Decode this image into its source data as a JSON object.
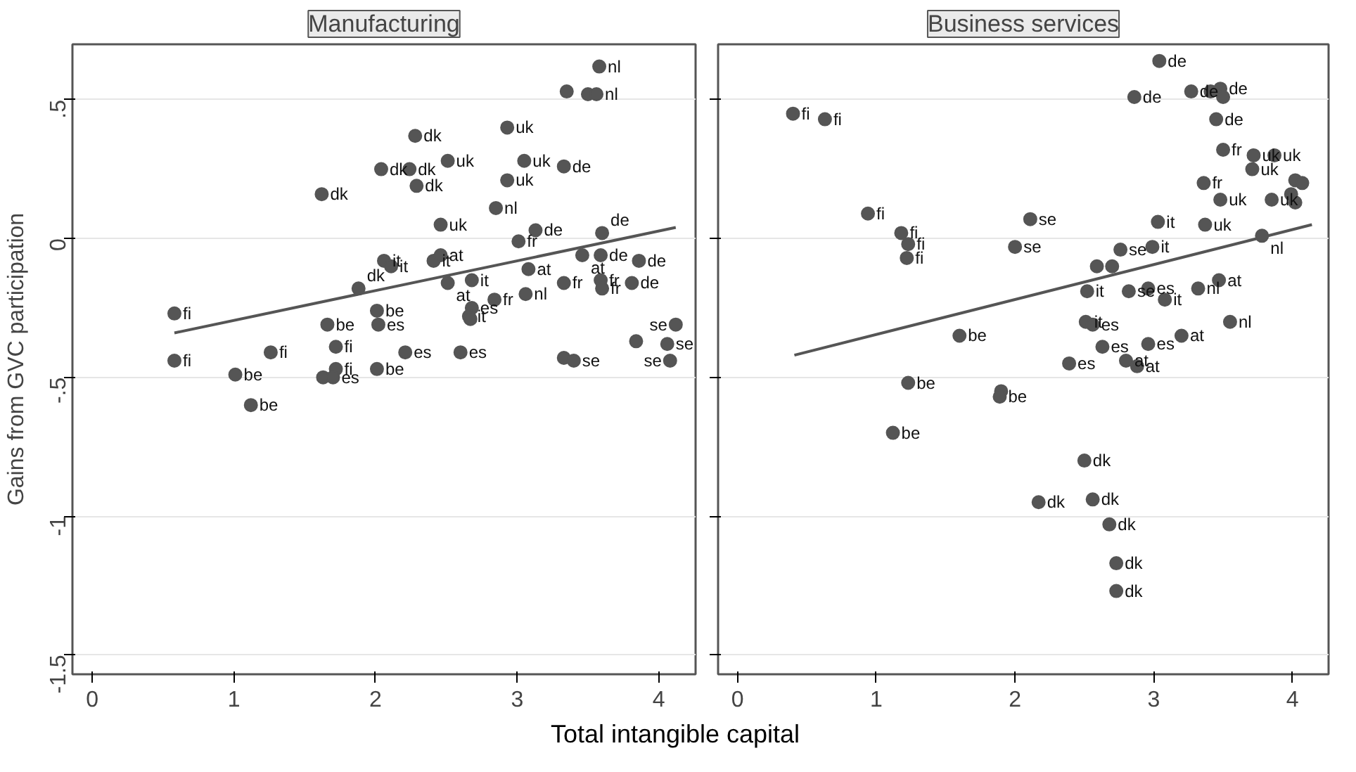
{
  "chart_data": [
    {
      "type": "scatter",
      "title": "Manufacturing",
      "ylabel": "Gains from GVC participation",
      "xlabel": "Total intangible capital",
      "xlim": [
        -0.14,
        4.26
      ],
      "ylim": [
        -1.57,
        0.7
      ],
      "xticks": [
        0,
        1,
        2,
        3,
        4
      ],
      "yticks": [
        {
          "value": 0.5,
          "label": ".5"
        },
        0,
        {
          "value": -0.5,
          "label": "-.5"
        },
        {
          "value": -1,
          "label": "-1"
        },
        {
          "value": -1.5,
          "label": "-1.5"
        }
      ],
      "grid": "y",
      "series": [
        {
          "marker": "circle",
          "color": "#555555",
          "x": [
            3.58,
            3.35,
            3.5,
            3.56,
            2.28,
            2.93,
            2.04,
            2.24,
            2.51,
            2.29,
            3.05,
            3.33,
            2.93,
            1.62,
            2.85,
            2.46,
            3.13,
            3.01,
            3.6,
            3.46,
            3.59,
            3.86,
            2.06,
            2.11,
            2.41,
            2.46,
            1.88,
            2.51,
            2.68,
            3.08,
            3.33,
            3.59,
            3.6,
            3.81,
            3.06,
            2.84,
            0.58,
            2.68,
            2.66,
            2.67,
            2.01,
            1.66,
            2.02,
            4.12,
            3.84,
            4.06,
            4.08,
            3.33,
            3.4,
            1.72,
            2.21,
            2.6,
            0.58,
            1.26,
            1.01,
            1.72,
            1.63,
            1.7,
            2.01,
            1.12
          ],
          "values": [
            0.62,
            0.53,
            0.52,
            0.52,
            0.37,
            0.4,
            0.25,
            0.25,
            0.28,
            0.19,
            0.28,
            0.26,
            0.21,
            0.16,
            0.11,
            0.05,
            0.03,
            -0.01,
            0.02,
            -0.06,
            -0.06,
            -0.08,
            -0.08,
            -0.1,
            -0.08,
            -0.06,
            -0.18,
            -0.16,
            -0.15,
            -0.11,
            -0.16,
            -0.15,
            -0.18,
            -0.16,
            -0.2,
            -0.22,
            -0.27,
            -0.25,
            -0.28,
            -0.29,
            -0.26,
            -0.31,
            -0.31,
            -0.31,
            -0.37,
            -0.38,
            -0.44,
            -0.43,
            -0.44,
            -0.39,
            -0.41,
            -0.41,
            -0.44,
            -0.41,
            -0.49,
            -0.47,
            -0.5,
            -0.5,
            -0.47,
            -0.6
          ],
          "value_labels": [
            "nl",
            null,
            null,
            "nl",
            "dk",
            "uk",
            "dk",
            "dk",
            "uk",
            "dk",
            "uk",
            "de",
            "uk",
            "dk",
            "nl",
            "uk",
            "de",
            "fr",
            "de",
            "at",
            "de",
            "de",
            "it",
            "it",
            "it",
            "at",
            "dk",
            "at",
            "it",
            "at",
            "fr",
            "fr",
            "fr",
            "de",
            "nl",
            "fr",
            "fi",
            "es",
            "it",
            null,
            "be",
            "be",
            "es",
            "se",
            null,
            "se",
            "se",
            null,
            "se",
            "fi",
            "es",
            "es",
            "fi",
            "fi",
            "be",
            "fi",
            null,
            "es",
            "be",
            "be"
          ]
        },
        {
          "type": "line",
          "color": "#555555",
          "x": [
            0.58,
            4.12
          ],
          "values": [
            -0.34,
            0.04
          ]
        }
      ]
    },
    {
      "type": "scatter",
      "title": "Business services",
      "xlim": [
        -0.14,
        4.26
      ],
      "ylim": [
        -1.57,
        0.7
      ],
      "xticks": [
        0,
        1,
        2,
        3,
        4
      ],
      "yticks": [
        {
          "value": 0.5,
          "label": null
        },
        {
          "value": 0,
          "label": null
        },
        {
          "value": -0.5,
          "label": null
        },
        {
          "value": -1,
          "label": null
        },
        {
          "value": -1.5,
          "label": null
        }
      ],
      "grid": "y",
      "tick_labels": "x",
      "series": [
        {
          "marker": "circle",
          "color": "#555555",
          "x": [
            3.04,
            2.86,
            3.27,
            3.41,
            3.48,
            3.5,
            3.45,
            0.4,
            0.63,
            3.5,
            3.72,
            3.87,
            3.71,
            3.36,
            4.02,
            4.07,
            4.02,
            3.99,
            3.48,
            3.85,
            0.94,
            2.11,
            3.03,
            3.37,
            3.78,
            1.18,
            1.23,
            1.22,
            2.0,
            2.76,
            2.99,
            2.59,
            2.7,
            2.52,
            2.82,
            2.96,
            3.08,
            3.32,
            3.47,
            2.51,
            2.56,
            3.55,
            3.2,
            2.96,
            2.63,
            2.8,
            2.88,
            2.39,
            1.6,
            1.23,
            1.9,
            1.89,
            1.12,
            2.5,
            2.17,
            2.56,
            2.68,
            2.73,
            2.73
          ],
          "values": [
            0.64,
            0.51,
            0.53,
            0.53,
            0.54,
            0.51,
            0.43,
            0.45,
            0.43,
            0.32,
            0.3,
            0.3,
            0.25,
            0.2,
            0.21,
            0.2,
            0.13,
            0.16,
            0.14,
            0.14,
            0.09,
            0.07,
            0.06,
            0.05,
            0.01,
            0.02,
            -0.02,
            -0.07,
            -0.03,
            -0.04,
            -0.03,
            -0.1,
            -0.1,
            -0.19,
            -0.19,
            -0.18,
            -0.22,
            -0.18,
            -0.15,
            -0.3,
            -0.31,
            -0.3,
            -0.35,
            -0.38,
            -0.39,
            -0.44,
            -0.46,
            -0.45,
            -0.35,
            -0.52,
            -0.55,
            -0.57,
            -0.7,
            -0.8,
            -0.95,
            -0.94,
            -1.03,
            -1.17,
            -1.27
          ],
          "value_labels": [
            "de",
            "de",
            "de",
            null,
            "de",
            null,
            "de",
            "fi",
            "fi",
            "fr",
            "uk",
            "uk",
            "uk",
            "fr",
            null,
            null,
            null,
            null,
            "uk",
            "uk",
            "fi",
            "se",
            "it",
            "uk",
            "nl",
            "fi",
            "fi",
            "fi",
            "se",
            "se",
            "it",
            null,
            null,
            "it",
            "se",
            "es",
            "it",
            "nl",
            "at",
            "it",
            "es",
            "nl",
            "at",
            "es",
            "es",
            "at",
            "at",
            "es",
            "be",
            "be",
            null,
            "be",
            "be",
            "dk",
            "dk",
            "dk",
            "dk",
            "dk",
            "dk"
          ]
        },
        {
          "type": "line",
          "color": "#555555",
          "x": [
            0.41,
            4.14
          ],
          "values": [
            -0.42,
            0.05
          ]
        }
      ]
    }
  ]
}
